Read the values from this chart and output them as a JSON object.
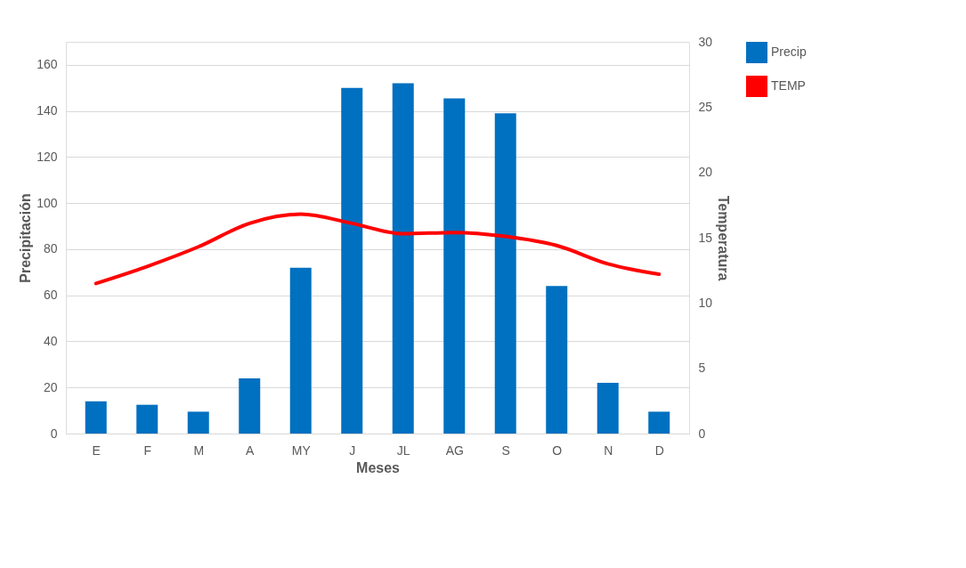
{
  "chart_data": {
    "type": "bar",
    "xlabel": "Meses",
    "ylabel": "Precipitación",
    "y2label": "Temperatura",
    "categories": [
      "E",
      "F",
      "M",
      "A",
      "MY",
      "J",
      "JL",
      "AG",
      "S",
      "O",
      "N",
      "D"
    ],
    "series": [
      {
        "name": "Precip",
        "color": "#0070c0",
        "values": [
          14,
          12.5,
          9.5,
          24,
          72,
          150,
          152,
          145.5,
          139,
          64,
          22,
          9.5
        ]
      },
      {
        "name": "TEMP",
        "type": "line",
        "axis": "y2",
        "color": "#ff0000",
        "values": [
          11.5,
          12.8,
          14.3,
          16.1,
          16.8,
          16.1,
          15.3,
          15.4,
          15.1,
          14.4,
          13.0,
          12.2
        ]
      }
    ],
    "ylim": [
      0,
      170
    ],
    "yticks": [
      0,
      20,
      40,
      60,
      80,
      100,
      120,
      140,
      160
    ],
    "y2lim": [
      0,
      30
    ],
    "y2ticks": [
      0,
      5,
      10,
      15,
      20,
      25,
      30
    ],
    "grid": "y",
    "legend": "right",
    "marker": "none",
    "line_style": "solid"
  }
}
